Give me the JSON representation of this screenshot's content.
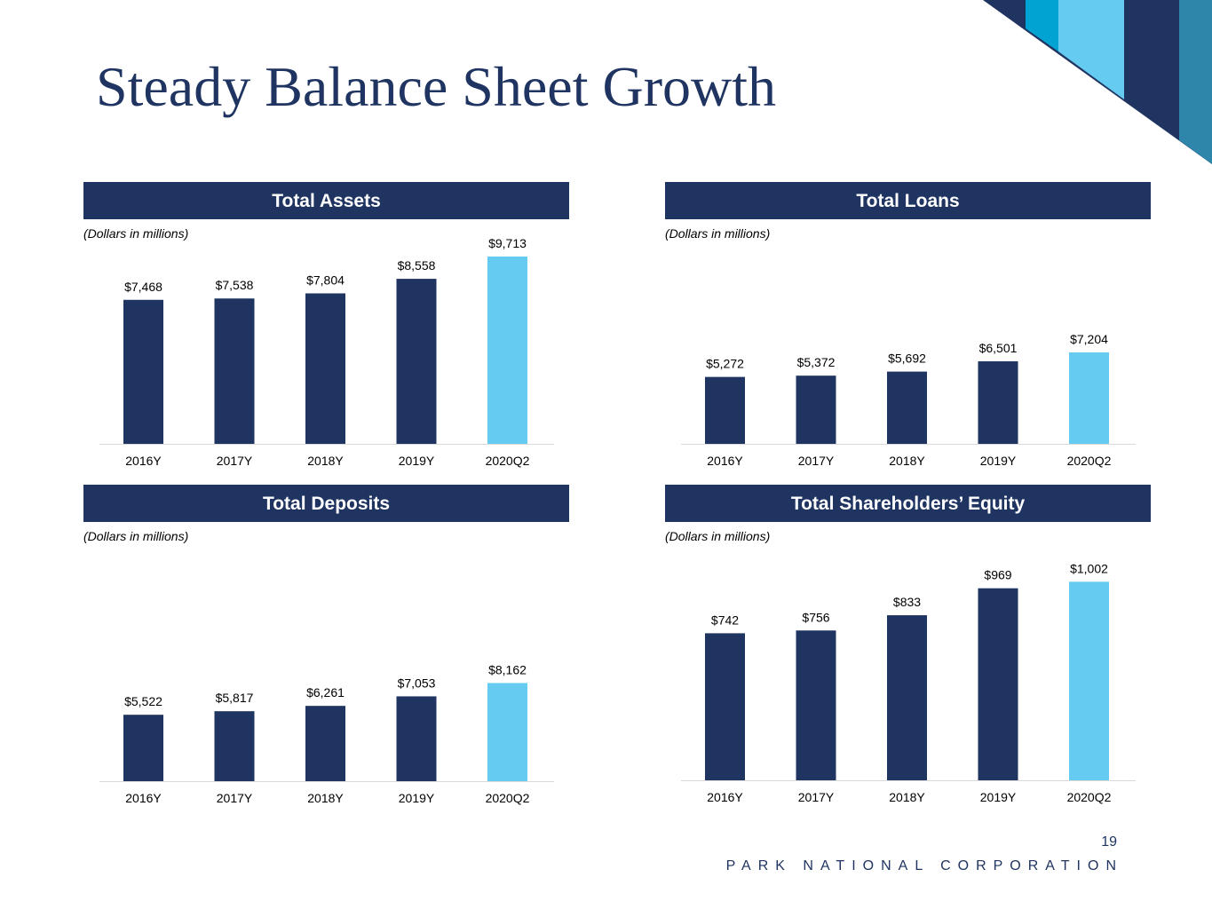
{
  "title": "Steady Balance Sheet Growth",
  "footer": {
    "page_number": "19",
    "company": "PARK NATIONAL CORPORATION"
  },
  "colors": {
    "navy": "#1f3461",
    "highlight": "#66cbf0",
    "teal": "#2e86ab",
    "cyan": "#00a3d1"
  },
  "chart_data": [
    {
      "type": "bar",
      "title": "Total Assets",
      "subtitle": "(Dollars in millions)",
      "categories": [
        "2016Y",
        "2017Y",
        "2018Y",
        "2019Y",
        "2020Q2"
      ],
      "values": [
        7468,
        7538,
        7804,
        8558,
        9713
      ],
      "labels": [
        "$7,468",
        "$7,538",
        "$7,804",
        "$8,558",
        "$9,713"
      ],
      "highlight_index": 4,
      "ylim": [
        0,
        9713
      ]
    },
    {
      "type": "bar",
      "title": "Total Loans",
      "subtitle": "(Dollars in millions)",
      "categories": [
        "2016Y",
        "2017Y",
        "2018Y",
        "2019Y",
        "2020Q2"
      ],
      "values": [
        5272,
        5372,
        5692,
        6501,
        7204
      ],
      "labels": [
        "$5,272",
        "$5,372",
        "$5,692",
        "$6,501",
        "$7,204"
      ],
      "highlight_index": 4,
      "ylim": [
        0,
        10000
      ]
    },
    {
      "type": "bar",
      "title": "Total Deposits",
      "subtitle": "(Dollars in millions)",
      "categories": [
        "2016Y",
        "2017Y",
        "2018Y",
        "2019Y",
        "2020Q2"
      ],
      "values": [
        5522,
        5817,
        6261,
        7053,
        8162
      ],
      "labels": [
        "$5,522",
        "$5,817",
        "$6,261",
        "$7,053",
        "$8,162"
      ],
      "highlight_index": 4,
      "ylim": [
        0,
        12400
      ]
    },
    {
      "type": "bar",
      "title": "Total Shareholders’ Equity",
      "subtitle": "(Dollars in millions)",
      "categories": [
        "2016Y",
        "2017Y",
        "2018Y",
        "2019Y",
        "2020Q2"
      ],
      "values": [
        742,
        756,
        833,
        969,
        1002
      ],
      "labels": [
        "$742",
        "$756",
        "$833",
        "$969",
        "$1,002"
      ],
      "highlight_index": 4,
      "ylim": [
        0,
        1120
      ]
    }
  ]
}
